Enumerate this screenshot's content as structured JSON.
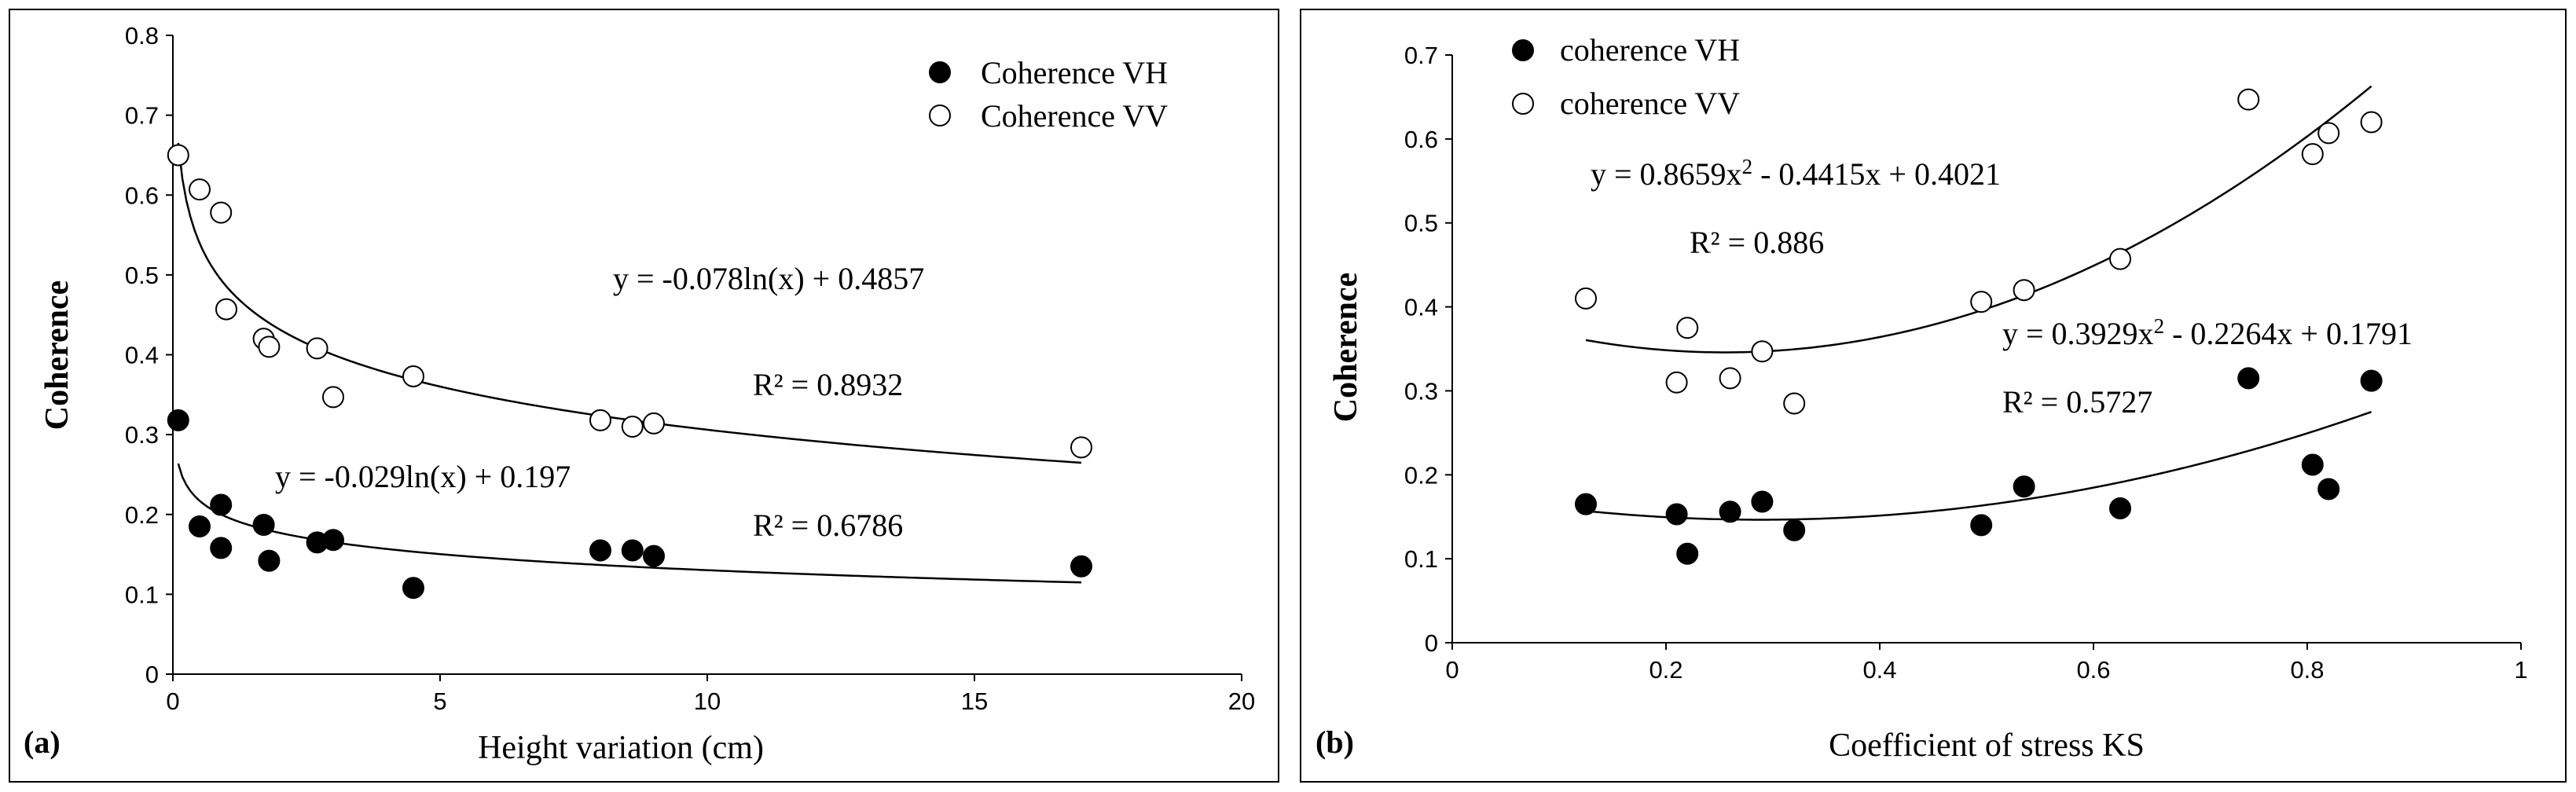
{
  "chart_data": [
    {
      "type": "scatter",
      "panel_label": "(a)",
      "xlabel": "Height variation (cm)",
      "ylabel": "Coherence",
      "xlim": [
        0,
        20
      ],
      "ylim": [
        0,
        0.8
      ],
      "xticks": [
        0,
        5,
        10,
        15,
        20
      ],
      "yticks": [
        0,
        0.1,
        0.2,
        0.3,
        0.4,
        0.5,
        0.6,
        0.7,
        0.8
      ],
      "xtick_labels": [
        "0",
        "5",
        "10",
        "15",
        "20"
      ],
      "ytick_labels": [
        "0",
        "0.1",
        "0.2",
        "0.3",
        "0.4",
        "0.5",
        "0.6",
        "0.7",
        "0.8"
      ],
      "legend_position": "top-right",
      "series": [
        {
          "name": "Coherence VH",
          "marker": "filled-circle",
          "x": [
            0.1,
            0.5,
            0.9,
            0.9,
            1.7,
            1.8,
            2.7,
            3.0,
            4.5,
            8.0,
            8.6,
            9.0,
            17.0
          ],
          "y": [
            0.318,
            0.185,
            0.158,
            0.212,
            0.187,
            0.142,
            0.165,
            0.168,
            0.108,
            0.155,
            0.155,
            0.148,
            0.135
          ],
          "trend": {
            "kind": "log",
            "a": -0.029,
            "b": 0.197,
            "x_range": [
              0.1,
              17.0
            ]
          },
          "equation": "y = -0.029ln(x) + 0.197",
          "r2": "R² = 0.6786"
        },
        {
          "name": "Coherence VV",
          "marker": "open-circle",
          "x": [
            0.1,
            0.5,
            0.9,
            1.0,
            1.7,
            1.8,
            2.7,
            3.0,
            4.5,
            8.0,
            8.6,
            9.0,
            17.0
          ],
          "y": [
            0.65,
            0.607,
            0.578,
            0.457,
            0.42,
            0.41,
            0.408,
            0.347,
            0.373,
            0.318,
            0.31,
            0.314,
            0.284
          ],
          "trend": {
            "kind": "log",
            "a": -0.078,
            "b": 0.4857,
            "x_range": [
              0.1,
              17.0
            ]
          },
          "equation": "y = -0.078ln(x) + 0.4857",
          "r2": "R² = 0.8932"
        }
      ]
    },
    {
      "type": "scatter",
      "panel_label": "(b)",
      "xlabel": "Coefficient of stress KS",
      "ylabel": "Coherence",
      "xlim": [
        0,
        1
      ],
      "ylim": [
        0,
        0.7
      ],
      "xticks": [
        0,
        0.2,
        0.4,
        0.6,
        0.8,
        1
      ],
      "yticks": [
        0,
        0.1,
        0.2,
        0.3,
        0.4,
        0.5,
        0.6,
        0.7
      ],
      "xtick_labels": [
        "0",
        "0.2",
        "0.4",
        "0.6",
        "0.8",
        "1"
      ],
      "ytick_labels": [
        "0",
        "0.1",
        "0.2",
        "0.3",
        "0.4",
        "0.5",
        "0.6",
        "0.7"
      ],
      "legend_position": "top-left",
      "series": [
        {
          "name": "coherence VH",
          "marker": "filled-circle",
          "x": [
            0.125,
            0.21,
            0.22,
            0.26,
            0.29,
            0.32,
            0.495,
            0.535,
            0.625,
            0.745,
            0.805,
            0.82,
            0.86
          ],
          "y": [
            0.165,
            0.153,
            0.106,
            0.156,
            0.168,
            0.134,
            0.14,
            0.186,
            0.16,
            0.315,
            0.212,
            0.183,
            0.312
          ],
          "trend": {
            "kind": "poly2",
            "a": 0.3929,
            "b": -0.2264,
            "c": 0.1791,
            "x_range": [
              0.125,
              0.86
            ]
          },
          "equation": "y = 0.3929x",
          "equation_exp": "2",
          "equation_tail": " - 0.2264x + 0.1791",
          "r2": "R² = 0.5727"
        },
        {
          "name": "coherence VV",
          "marker": "open-circle",
          "x": [
            0.125,
            0.21,
            0.22,
            0.26,
            0.29,
            0.32,
            0.495,
            0.535,
            0.625,
            0.745,
            0.805,
            0.82,
            0.86
          ],
          "y": [
            0.41,
            0.31,
            0.375,
            0.315,
            0.347,
            0.285,
            0.406,
            0.42,
            0.457,
            0.647,
            0.582,
            0.607,
            0.62
          ],
          "trend": {
            "kind": "poly2",
            "a": 0.8659,
            "b": -0.4415,
            "c": 0.4021,
            "x_range": [
              0.125,
              0.86
            ]
          },
          "equation": "y = 0.8659x",
          "equation_exp": "2",
          "equation_tail": " - 0.4415x + 0.4021",
          "r2": "R² = 0.886"
        }
      ]
    }
  ]
}
